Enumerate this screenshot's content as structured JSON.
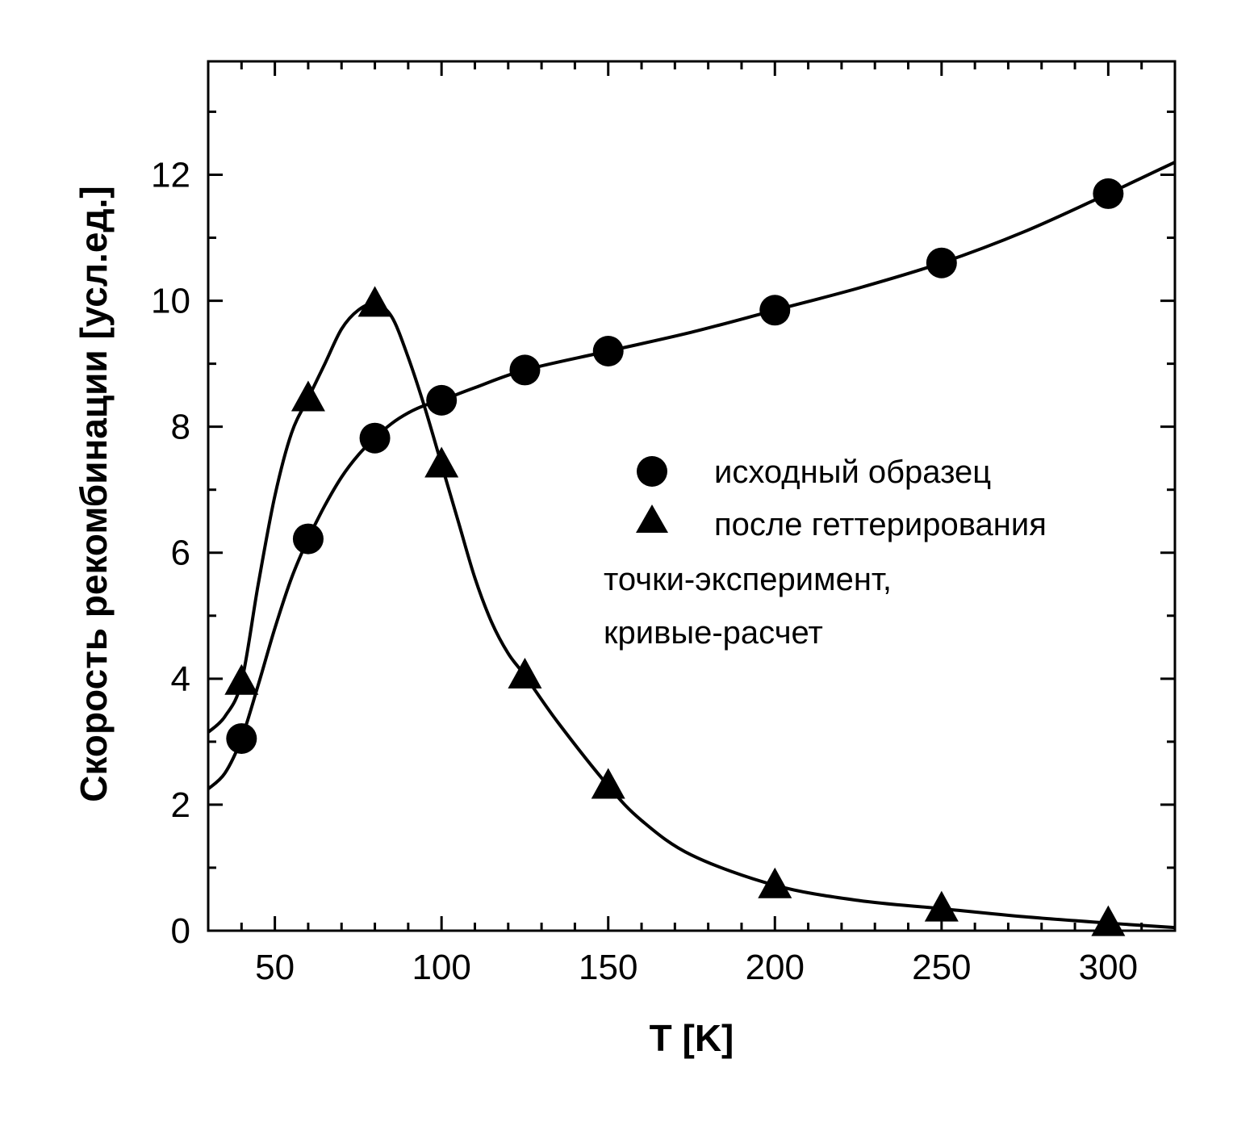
{
  "chart_data": {
    "type": "scatter",
    "xlabel": "T [K]",
    "ylabel": "Скорость рекомбинации [усл.ед.]",
    "xlim": [
      30,
      320
    ],
    "ylim": [
      0,
      13.8
    ],
    "x_ticks": [
      50,
      100,
      150,
      200,
      250,
      300
    ],
    "y_ticks": [
      0,
      2,
      4,
      6,
      8,
      10,
      12
    ],
    "legend_position": "center-right",
    "series": [
      {
        "name": "исходный образец",
        "marker": "circle",
        "points": [
          {
            "x": 40,
            "y": 3.05
          },
          {
            "x": 60,
            "y": 6.22
          },
          {
            "x": 80,
            "y": 7.82
          },
          {
            "x": 100,
            "y": 8.42
          },
          {
            "x": 125,
            "y": 8.9
          },
          {
            "x": 150,
            "y": 9.2
          },
          {
            "x": 200,
            "y": 9.85
          },
          {
            "x": 250,
            "y": 10.6
          },
          {
            "x": 300,
            "y": 11.7
          }
        ],
        "curve": [
          [
            30,
            2.25
          ],
          [
            35,
            2.5
          ],
          [
            40,
            3.05
          ],
          [
            45,
            3.9
          ],
          [
            50,
            4.8
          ],
          [
            55,
            5.6
          ],
          [
            60,
            6.22
          ],
          [
            65,
            6.75
          ],
          [
            70,
            7.2
          ],
          [
            75,
            7.55
          ],
          [
            80,
            7.82
          ],
          [
            85,
            8.05
          ],
          [
            90,
            8.22
          ],
          [
            95,
            8.34
          ],
          [
            100,
            8.42
          ],
          [
            110,
            8.62
          ],
          [
            125,
            8.9
          ],
          [
            150,
            9.2
          ],
          [
            175,
            9.5
          ],
          [
            200,
            9.85
          ],
          [
            225,
            10.2
          ],
          [
            250,
            10.6
          ],
          [
            275,
            11.1
          ],
          [
            300,
            11.7
          ],
          [
            320,
            12.2
          ]
        ]
      },
      {
        "name": "после геттерирования",
        "marker": "triangle",
        "points": [
          {
            "x": 40,
            "y": 3.95
          },
          {
            "x": 60,
            "y": 8.45
          },
          {
            "x": 80,
            "y": 9.95
          },
          {
            "x": 100,
            "y": 7.4
          },
          {
            "x": 125,
            "y": 4.05
          },
          {
            "x": 150,
            "y": 2.3
          },
          {
            "x": 200,
            "y": 0.72
          },
          {
            "x": 250,
            "y": 0.35
          },
          {
            "x": 300,
            "y": 0.12
          }
        ],
        "curve": [
          [
            30,
            3.15
          ],
          [
            35,
            3.4
          ],
          [
            40,
            3.95
          ],
          [
            45,
            5.5
          ],
          [
            50,
            6.9
          ],
          [
            55,
            7.9
          ],
          [
            60,
            8.45
          ],
          [
            65,
            9.0
          ],
          [
            70,
            9.55
          ],
          [
            75,
            9.85
          ],
          [
            80,
            9.95
          ],
          [
            85,
            9.75
          ],
          [
            90,
            9.1
          ],
          [
            95,
            8.3
          ],
          [
            100,
            7.4
          ],
          [
            105,
            6.5
          ],
          [
            110,
            5.6
          ],
          [
            115,
            4.9
          ],
          [
            120,
            4.4
          ],
          [
            125,
            4.05
          ],
          [
            135,
            3.3
          ],
          [
            150,
            2.3
          ],
          [
            160,
            1.75
          ],
          [
            175,
            1.2
          ],
          [
            200,
            0.72
          ],
          [
            225,
            0.48
          ],
          [
            250,
            0.35
          ],
          [
            275,
            0.22
          ],
          [
            300,
            0.12
          ],
          [
            320,
            0.05
          ]
        ]
      }
    ],
    "annotations": [
      "точки-эксперимент,",
      "кривые-расчет"
    ],
    "colors": {
      "line": "#000000",
      "marker": "#000000",
      "background": "#ffffff"
    }
  }
}
